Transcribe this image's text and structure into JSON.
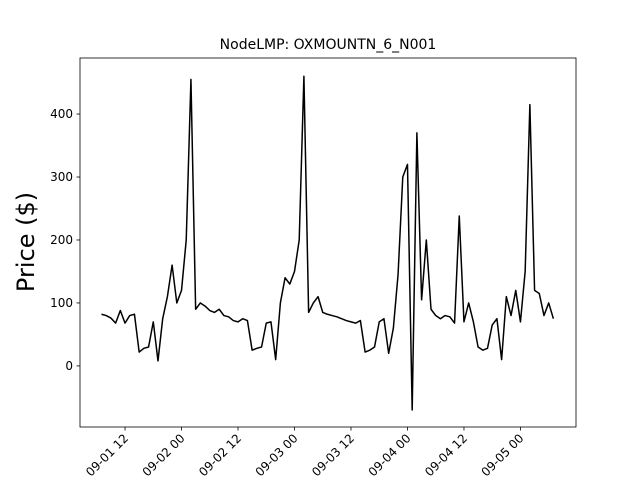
{
  "chart_data": {
    "type": "line",
    "title": "NodeLMP: OXMOUNTN_6_N001",
    "y_label": "Price ($)",
    "x": [
      "09-01 07",
      "09-01 08",
      "09-01 09",
      "09-01 10",
      "09-01 11",
      "09-01 12",
      "09-01 13",
      "09-01 14",
      "09-01 15",
      "09-01 16",
      "09-01 17",
      "09-01 18",
      "09-01 19",
      "09-01 20",
      "09-01 21",
      "09-01 22",
      "09-01 23",
      "09-02 00",
      "09-02 01",
      "09-02 02",
      "09-02 03",
      "09-02 04",
      "09-02 05",
      "09-02 06",
      "09-02 07",
      "09-02 08",
      "09-02 09",
      "09-02 10",
      "09-02 11",
      "09-02 12",
      "09-02 13",
      "09-02 14",
      "09-02 15",
      "09-02 16",
      "09-02 17",
      "09-02 18",
      "09-02 19",
      "09-02 20",
      "09-02 21",
      "09-02 22",
      "09-02 23",
      "09-03 00",
      "09-03 01",
      "09-03 02",
      "09-03 03",
      "09-03 04",
      "09-03 05",
      "09-03 06",
      "09-03 07",
      "09-03 08",
      "09-03 09",
      "09-03 10",
      "09-03 11",
      "09-03 12",
      "09-03 13",
      "09-03 14",
      "09-03 15",
      "09-03 16",
      "09-03 17",
      "09-03 18",
      "09-03 19",
      "09-03 20",
      "09-03 21",
      "09-03 22",
      "09-03 23",
      "09-04 00",
      "09-04 01",
      "09-04 02",
      "09-04 03",
      "09-04 04",
      "09-04 05",
      "09-04 06",
      "09-04 07",
      "09-04 08",
      "09-04 09",
      "09-04 10",
      "09-04 11",
      "09-04 12",
      "09-04 13",
      "09-04 14",
      "09-04 15",
      "09-04 16",
      "09-04 17",
      "09-04 18",
      "09-04 19",
      "09-04 20",
      "09-04 21",
      "09-04 22",
      "09-04 23",
      "09-05 00",
      "09-05 01",
      "09-05 02",
      "09-05 03",
      "09-05 04",
      "09-05 05",
      "09-05 06",
      "09-05 07"
    ],
    "series": [
      {
        "color": "#000000",
        "values": [
          82,
          80,
          76,
          68,
          88,
          68,
          80,
          82,
          22,
          28,
          30,
          70,
          8,
          75,
          110,
          160,
          100,
          120,
          200,
          455,
          90,
          100,
          95,
          88,
          85,
          90,
          80,
          78,
          72,
          70,
          75,
          72,
          25,
          28,
          30,
          68,
          70,
          10,
          100,
          140,
          130,
          150,
          200,
          460,
          85,
          100,
          110,
          85,
          82,
          80,
          78,
          75,
          72,
          70,
          68,
          72,
          22,
          25,
          30,
          70,
          75,
          20,
          60,
          145,
          300,
          320,
          -70,
          370,
          105,
          200,
          90,
          80,
          75,
          80,
          78,
          68,
          238,
          70,
          100,
          70,
          30,
          25,
          28,
          65,
          75,
          10,
          110,
          80,
          120,
          70,
          150,
          415,
          120,
          115,
          80,
          100,
          75
        ]
      }
    ],
    "xlim": [
      "09-01 02:26",
      "09-05 11:48"
    ],
    "xticks": [
      "09-01 12",
      "09-02 00",
      "09-02 12",
      "09-03 00",
      "09-03 12",
      "09-04 00",
      "09-04 12",
      "09-05 00"
    ],
    "ylim": [
      -97,
      489
    ],
    "yticks": [
      0,
      100,
      200,
      300,
      400
    ]
  }
}
